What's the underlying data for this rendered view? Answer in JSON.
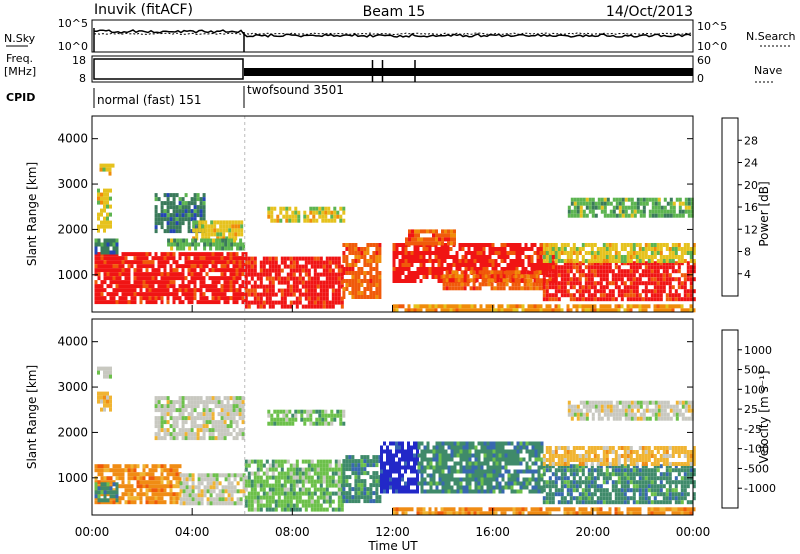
{
  "header": {
    "station": "Inuvik (fitACF)",
    "beam": "Beam 15",
    "date": "14/Oct/2013"
  },
  "strip_labels": {
    "nsky": "N.Sky",
    "nsearch": "N.Search",
    "freq_top": "Freq.",
    "freq_unit": "[MHz]",
    "nave": "Nave",
    "cpid": "CPID",
    "nsky_ticks": [
      "10^5",
      "10^0"
    ],
    "nsearch_ticks": [
      "10^5",
      "10^0"
    ],
    "freq_ticks": [
      "18",
      "8"
    ],
    "nave_ticks": [
      "60",
      "0"
    ]
  },
  "cpid_modes": [
    {
      "label": "normal (fast) 151",
      "start_hour": 0,
      "end_hour": 6.1
    },
    {
      "label": "twofsound 3501",
      "start_hour": 6.1,
      "end_hour": 24
    }
  ],
  "x_axis": {
    "label": "Time UT",
    "ticks": [
      "00:00",
      "04:00",
      "08:00",
      "12:00",
      "16:00",
      "20:00",
      "00:00"
    ],
    "range_hours": [
      0,
      24
    ]
  },
  "y_axis": {
    "label": "Slant Range [km]",
    "ticks": [
      1000,
      2000,
      3000,
      4000
    ],
    "range": [
      180,
      4500
    ]
  },
  "power_scale": {
    "title": "Power [dB]",
    "ticks": [
      "4",
      "8",
      "12",
      "16",
      "20",
      "24",
      "28"
    ],
    "colors": [
      "#0a1ef0",
      "#2545b4",
      "#3a7a5a",
      "#5cb450",
      "#e6c21e",
      "#f08c0a",
      "#f05a0a",
      "#f01414"
    ]
  },
  "velocity_scale": {
    "title": "Velocity [m s⁻¹]",
    "ticks": [
      "1000",
      "500",
      "100",
      "25",
      "-25",
      "-100",
      "-500",
      "-1000"
    ],
    "colors": [
      "#2228c8",
      "#3868b0",
      "#3f8a6a",
      "#6cc04a",
      "#c8c8c0",
      "#f0b432",
      "#f08c14",
      "#f05a0a",
      "#f01e14"
    ]
  },
  "chart_data": {
    "type": "heatmap",
    "panels": [
      {
        "name": "power",
        "regions": [
          {
            "t0": 0.1,
            "t1": 6.1,
            "r0": 400,
            "r1": 1500,
            "level": 7
          },
          {
            "t0": 0.1,
            "t1": 1.0,
            "r0": 1500,
            "r1": 1800,
            "level": 2
          },
          {
            "t0": 0.2,
            "t1": 0.7,
            "r0": 2000,
            "r1": 2900,
            "level": 4
          },
          {
            "t0": 0.3,
            "t1": 0.8,
            "r0": 3200,
            "r1": 3450,
            "level": 4
          },
          {
            "t0": 2.5,
            "t1": 4.5,
            "r0": 2000,
            "r1": 2800,
            "level": 2
          },
          {
            "t0": 4.0,
            "t1": 6.0,
            "r0": 1800,
            "r1": 2200,
            "level": 4
          },
          {
            "t0": 3.0,
            "t1": 6.0,
            "r0": 1550,
            "r1": 1800,
            "level": 3
          },
          {
            "t0": 6.1,
            "t1": 10.0,
            "r0": 300,
            "r1": 1400,
            "level": 7
          },
          {
            "t0": 7.0,
            "t1": 10.0,
            "r0": 2200,
            "r1": 2500,
            "level": 4
          },
          {
            "t0": 10.0,
            "t1": 11.5,
            "r0": 500,
            "r1": 1700,
            "level": 6
          },
          {
            "t0": 12.0,
            "t1": 18.5,
            "r0": 900,
            "r1": 1700,
            "level": 7
          },
          {
            "t0": 12.5,
            "t1": 14.5,
            "r0": 1700,
            "r1": 2000,
            "level": 6
          },
          {
            "t0": 14.0,
            "t1": 18.0,
            "r0": 700,
            "r1": 1100,
            "level": 6
          },
          {
            "t0": 18.0,
            "t1": 24.0,
            "r0": 500,
            "r1": 1300,
            "level": 7
          },
          {
            "t0": 18.0,
            "t1": 24.0,
            "r0": 1300,
            "r1": 1700,
            "level": 4
          },
          {
            "t0": 19.0,
            "t1": 24.0,
            "r0": 2300,
            "r1": 2700,
            "level": 3
          },
          {
            "t0": 12.0,
            "t1": 24.0,
            "r0": 200,
            "r1": 350,
            "level": 5
          }
        ]
      },
      {
        "name": "velocity",
        "regions": [
          {
            "t0": 0.1,
            "t1": 3.5,
            "r0": 500,
            "r1": 1300,
            "level": 6
          },
          {
            "t0": 0.1,
            "t1": 1.0,
            "r0": 500,
            "r1": 900,
            "level": 2
          },
          {
            "t0": 0.2,
            "t1": 0.7,
            "r0": 3200,
            "r1": 3450,
            "level": 4
          },
          {
            "t0": 0.2,
            "t1": 0.7,
            "r0": 2500,
            "r1": 2900,
            "level": 5
          },
          {
            "t0": 2.5,
            "t1": 6.0,
            "r0": 1900,
            "r1": 2800,
            "level": 4
          },
          {
            "t0": 3.5,
            "t1": 6.1,
            "r0": 400,
            "r1": 1100,
            "level": 4
          },
          {
            "t0": 6.1,
            "t1": 10.0,
            "r0": 300,
            "r1": 1400,
            "level": 3
          },
          {
            "t0": 7.0,
            "t1": 10.0,
            "r0": 2200,
            "r1": 2500,
            "level": 3
          },
          {
            "t0": 10.0,
            "t1": 11.5,
            "r0": 500,
            "r1": 1500,
            "level": 2
          },
          {
            "t0": 11.5,
            "t1": 13.0,
            "r0": 700,
            "r1": 1800,
            "level": 0
          },
          {
            "t0": 13.0,
            "t1": 18.0,
            "r0": 700,
            "r1": 1800,
            "level": 2
          },
          {
            "t0": 18.0,
            "t1": 24.0,
            "r0": 500,
            "r1": 1300,
            "level": 2
          },
          {
            "t0": 18.0,
            "t1": 24.0,
            "r0": 1300,
            "r1": 1700,
            "level": 5
          },
          {
            "t0": 19.0,
            "t1": 24.0,
            "r0": 2300,
            "r1": 2700,
            "level": 4
          },
          {
            "t0": 12.0,
            "t1": 24.0,
            "r0": 200,
            "r1": 350,
            "level": 6
          }
        ]
      }
    ]
  }
}
